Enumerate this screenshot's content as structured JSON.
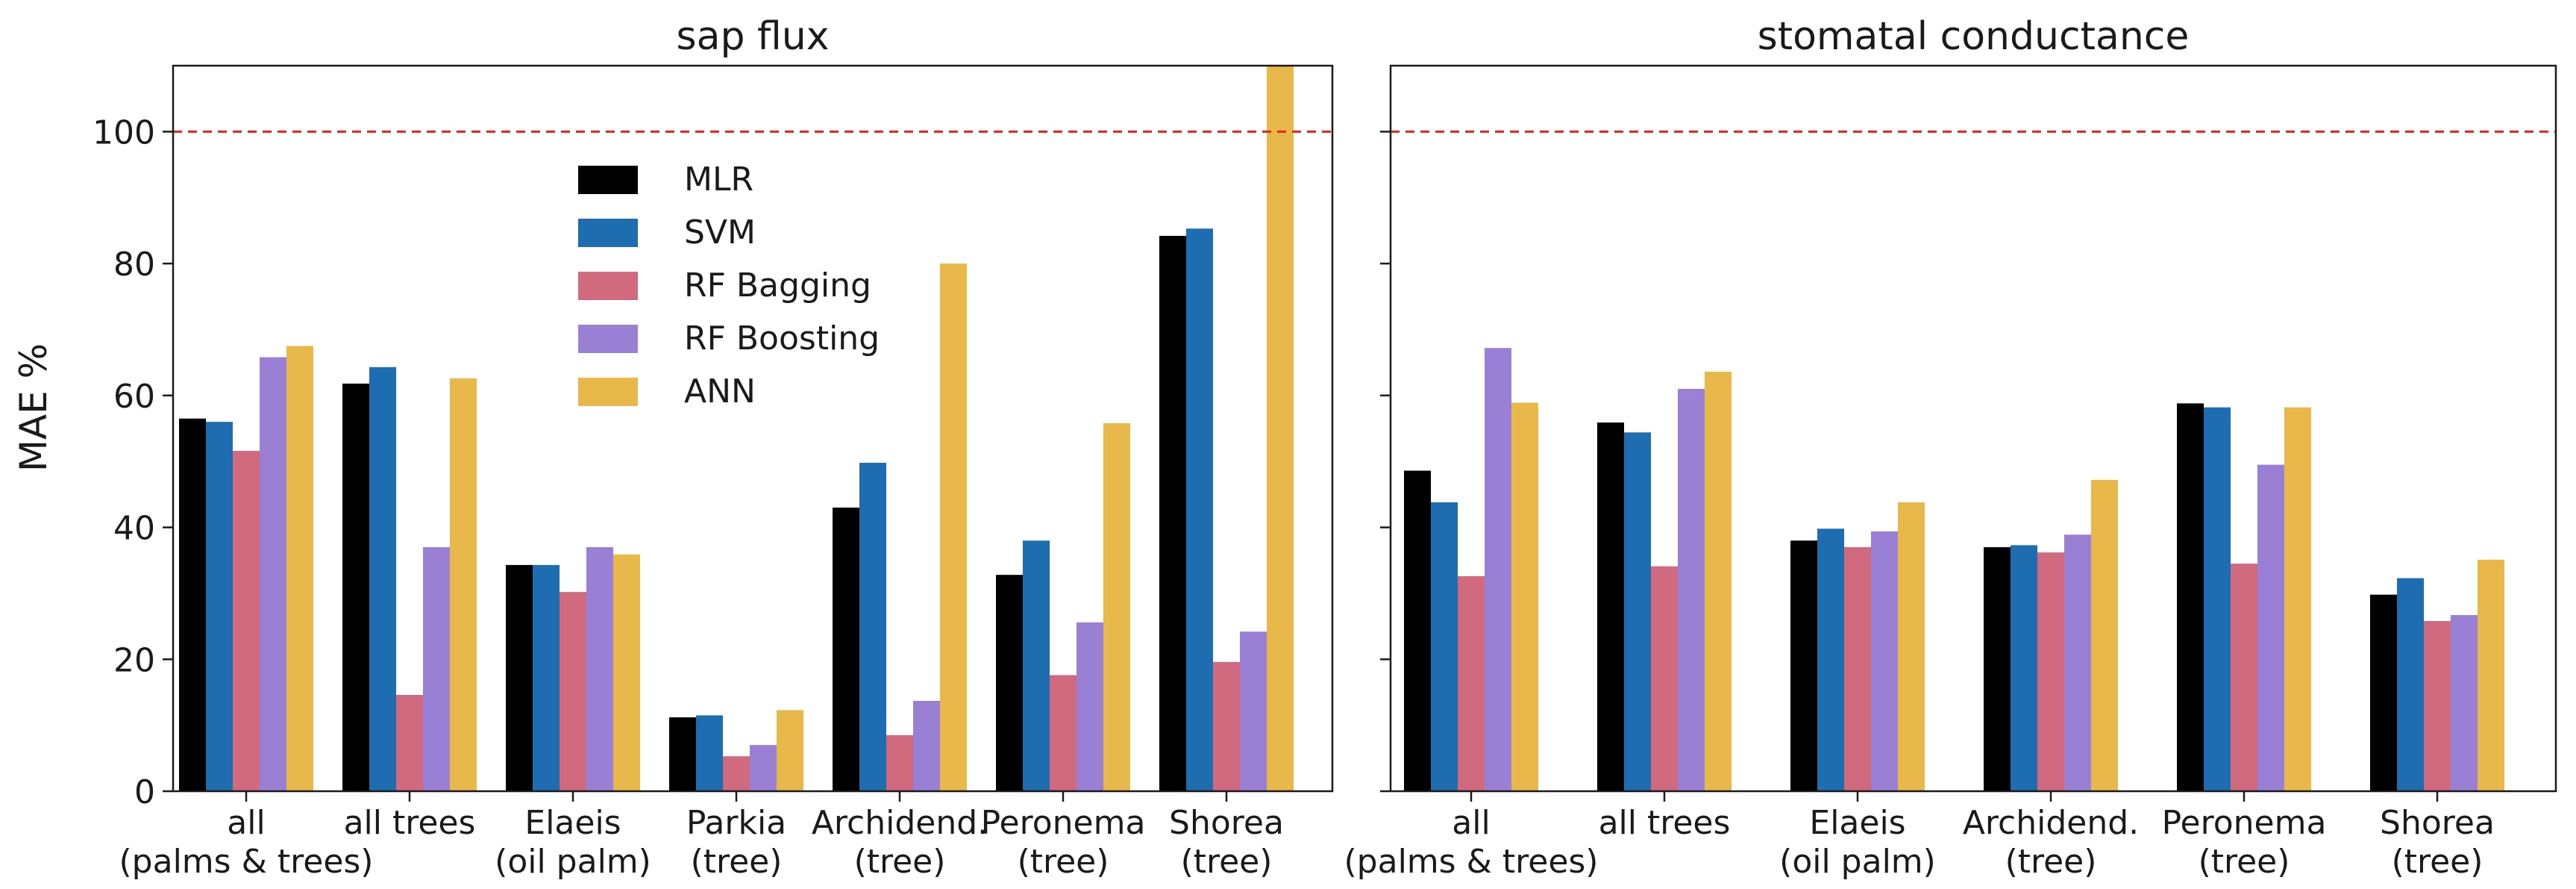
{
  "chart_data": [
    {
      "type": "bar",
      "title": "sap flux",
      "xlabel": "",
      "ylabel": "MAE %",
      "ylim": [
        0,
        110
      ],
      "yticks": [
        0,
        20,
        40,
        60,
        80,
        100
      ],
      "reference_line": {
        "y": 100,
        "color": "#e8231c",
        "style": "dashed"
      },
      "categories": [
        [
          "all",
          "(palms & trees)"
        ],
        [
          "all trees",
          ""
        ],
        [
          "Elaeis",
          "(oil palm)"
        ],
        [
          "Parkia",
          "(tree)"
        ],
        [
          "Archidend.",
          "(tree)"
        ],
        [
          "Peronema",
          "(tree)"
        ],
        [
          "Shorea",
          "(tree)"
        ]
      ],
      "series": [
        {
          "name": "MLR",
          "color": "#000000",
          "values": [
            56.5,
            61.8,
            34.3,
            11.2,
            43.0,
            32.8,
            84.2
          ]
        },
        {
          "name": "SVM",
          "color": "#1f6db1",
          "values": [
            56.0,
            64.3,
            34.3,
            11.5,
            49.8,
            38.0,
            85.3
          ]
        },
        {
          "name": "RF Bagging",
          "color": "#d1697f",
          "values": [
            51.6,
            14.6,
            30.2,
            5.3,
            8.5,
            17.6,
            19.6
          ]
        },
        {
          "name": "RF Boosting",
          "color": "#9a80d4",
          "values": [
            65.8,
            37.0,
            37.0,
            7.0,
            13.7,
            25.6,
            24.2
          ]
        },
        {
          "name": "ANN",
          "color": "#e8b84a",
          "values": [
            67.5,
            62.6,
            35.9,
            12.3,
            80.0,
            55.8,
            110.0
          ]
        }
      ],
      "legend": {
        "position": "upper-left-center"
      }
    },
    {
      "type": "bar",
      "title": "stomatal conductance",
      "xlabel": "",
      "ylabel": "",
      "ylim": [
        0,
        110
      ],
      "yticks": [
        0,
        20,
        40,
        60,
        80,
        100
      ],
      "reference_line": {
        "y": 100,
        "color": "#e8231c",
        "style": "dashed"
      },
      "categories": [
        [
          "all",
          "(palms & trees)"
        ],
        [
          "all trees",
          ""
        ],
        [
          "Elaeis",
          "(oil palm)"
        ],
        [
          "Archidend.",
          "(tree)"
        ],
        [
          "Peronema",
          "(tree)"
        ],
        [
          "Shorea",
          "(tree)"
        ]
      ],
      "series": [
        {
          "name": "MLR",
          "color": "#000000",
          "values": [
            48.6,
            55.9,
            38.0,
            37.0,
            58.8,
            29.8
          ]
        },
        {
          "name": "SVM",
          "color": "#1f6db1",
          "values": [
            43.8,
            54.4,
            39.8,
            37.3,
            58.2,
            32.3
          ]
        },
        {
          "name": "RF Bagging",
          "color": "#d1697f",
          "values": [
            32.6,
            34.1,
            37.0,
            36.2,
            34.5,
            25.8
          ]
        },
        {
          "name": "RF Boosting",
          "color": "#9a80d4",
          "values": [
            67.2,
            61.0,
            39.4,
            38.9,
            49.5,
            26.7
          ]
        },
        {
          "name": "ANN",
          "color": "#e8b84a",
          "values": [
            58.9,
            63.6,
            43.8,
            47.2,
            58.2,
            35.1
          ]
        }
      ]
    }
  ]
}
